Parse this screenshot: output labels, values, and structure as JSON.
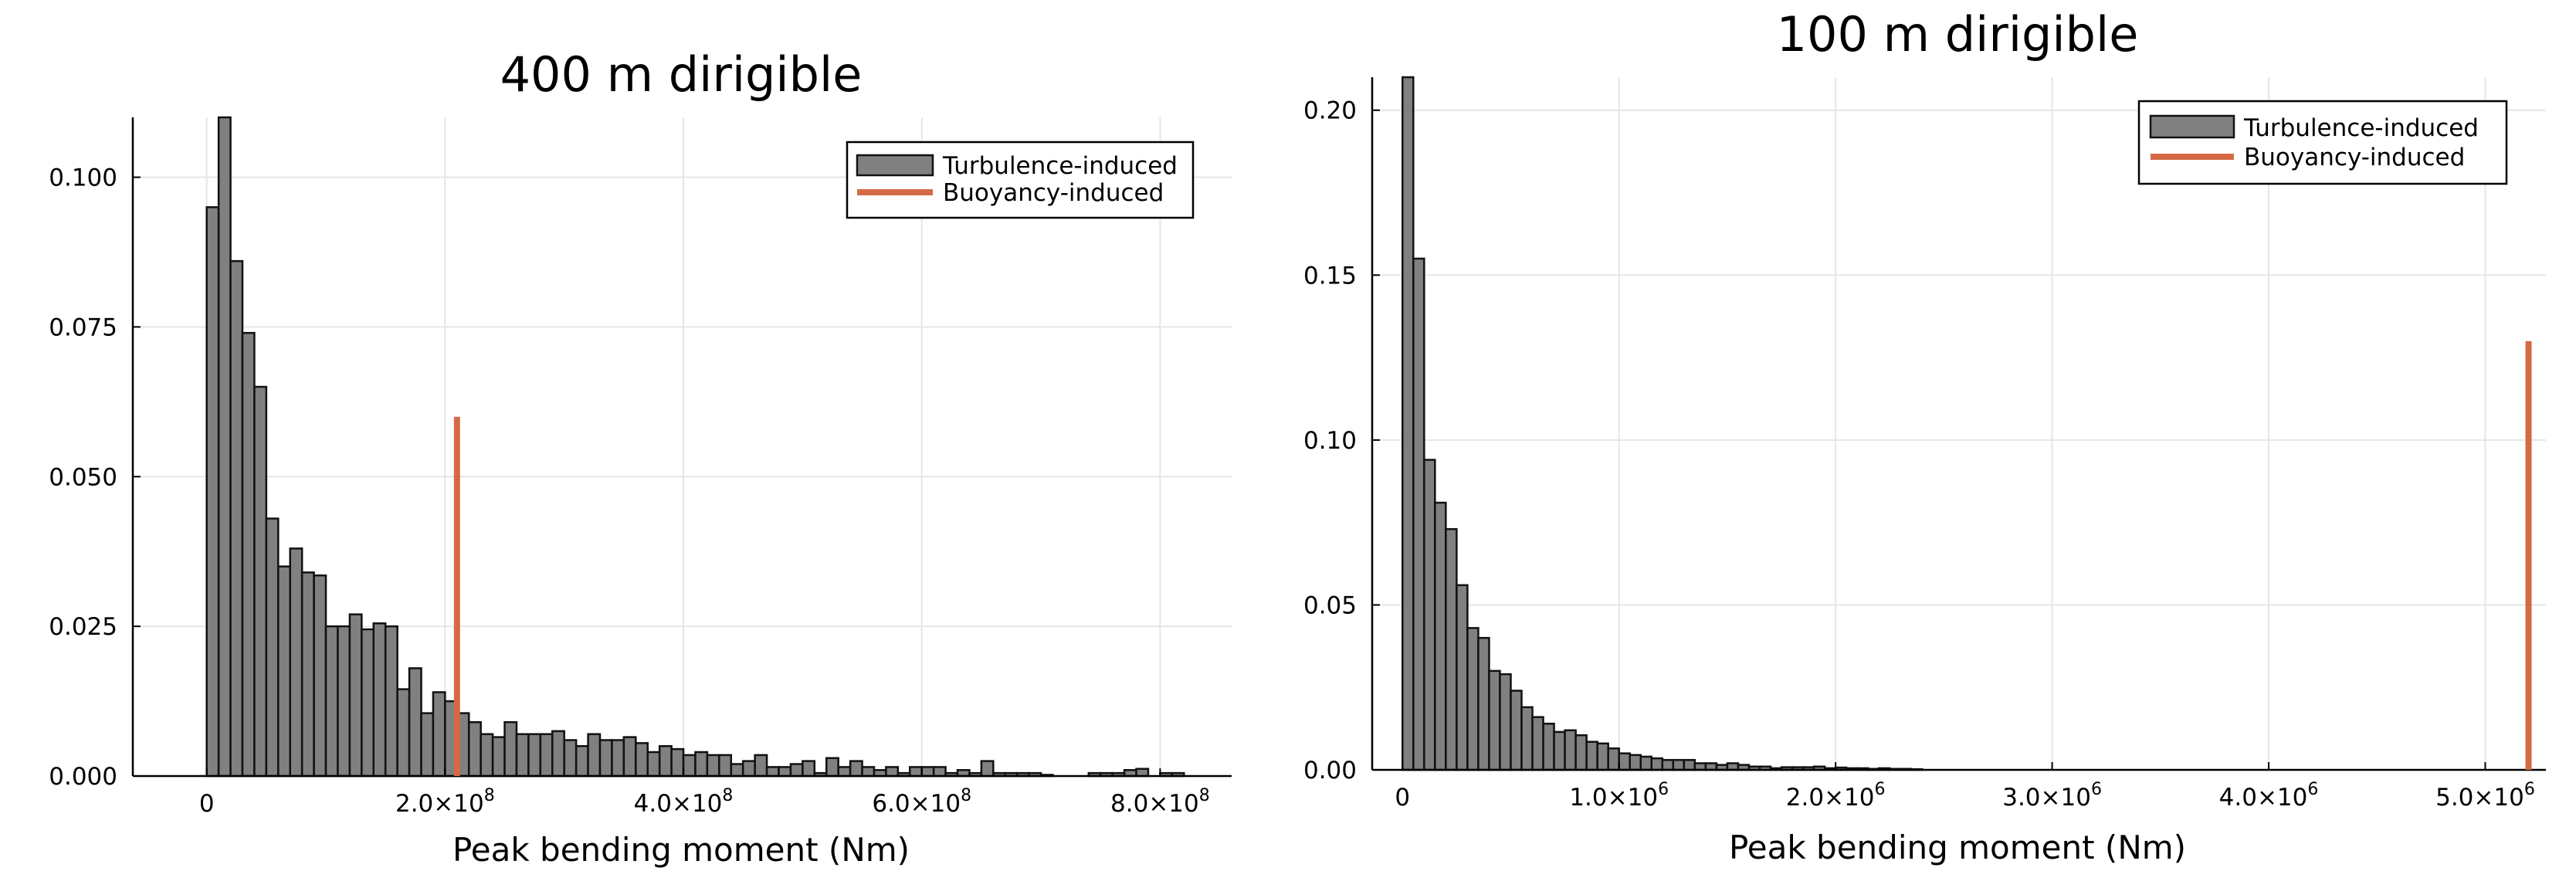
{
  "chart_data": [
    {
      "type": "bar",
      "title": "400 m dirigible",
      "xlabel": "Peak bending moment (Nm)",
      "ylabel": "",
      "xlim": [
        -62000000,
        860000000
      ],
      "ylim": [
        0,
        0.11
      ],
      "grid": true,
      "legend": "top-right",
      "legend_entries": [
        "Turbulence-induced",
        "Buoyancy-induced"
      ],
      "xticks": [
        {
          "value": 0,
          "mant": "0",
          "exp": ""
        },
        {
          "value": 200000000,
          "mant": "2.0×10",
          "exp": "8"
        },
        {
          "value": 400000000,
          "mant": "4.0×10",
          "exp": "8"
        },
        {
          "value": 600000000,
          "mant": "6.0×10",
          "exp": "8"
        },
        {
          "value": 800000000,
          "mant": "8.0×10",
          "exp": "8"
        }
      ],
      "yticks": [
        {
          "value": 0.0,
          "label": "0.000"
        },
        {
          "value": 0.025,
          "label": "0.025"
        },
        {
          "value": 0.05,
          "label": "0.050"
        },
        {
          "value": 0.075,
          "label": "0.075"
        },
        {
          "value": 0.1,
          "label": "0.100"
        }
      ],
      "bin_start": 0,
      "bin_width": 10000000,
      "values": [
        0.095,
        0.11,
        0.086,
        0.074,
        0.065,
        0.043,
        0.035,
        0.038,
        0.034,
        0.0335,
        0.025,
        0.025,
        0.027,
        0.0245,
        0.0255,
        0.025,
        0.0145,
        0.018,
        0.0105,
        0.014,
        0.0125,
        0.0105,
        0.009,
        0.007,
        0.0065,
        0.009,
        0.007,
        0.007,
        0.007,
        0.0075,
        0.006,
        0.005,
        0.007,
        0.006,
        0.006,
        0.0065,
        0.0055,
        0.004,
        0.005,
        0.0045,
        0.0035,
        0.004,
        0.0035,
        0.0035,
        0.002,
        0.0025,
        0.0035,
        0.0015,
        0.0015,
        0.002,
        0.0025,
        0.0005,
        0.003,
        0.0015,
        0.0025,
        0.0015,
        0.001,
        0.0015,
        0.0005,
        0.0015,
        0.0015,
        0.0015,
        0.0005,
        0.001,
        0.0005,
        0.0025,
        0.0005,
        0.0005,
        0.0005,
        0.0005,
        0.0002,
        0.0,
        0.0,
        0.0,
        0.0005,
        0.0005,
        0.0005,
        0.001,
        0.0012,
        0.0,
        0.0005,
        0.0005
      ],
      "buoyancy_line": {
        "x": 210000000,
        "y": 0.06
      }
    },
    {
      "type": "bar",
      "title": "100 m dirigible",
      "xlabel": "Peak bending moment (Nm)",
      "ylabel": "",
      "xlim": [
        -140000,
        5280000
      ],
      "ylim": [
        0,
        0.21
      ],
      "grid": true,
      "legend": "top-right",
      "legend_entries": [
        "Turbulence-induced",
        "Buoyancy-induced"
      ],
      "xticks": [
        {
          "value": 0,
          "mant": "0",
          "exp": ""
        },
        {
          "value": 1000000,
          "mant": "1.0×10",
          "exp": "6"
        },
        {
          "value": 2000000,
          "mant": "2.0×10",
          "exp": "6"
        },
        {
          "value": 3000000,
          "mant": "3.0×10",
          "exp": "6"
        },
        {
          "value": 4000000,
          "mant": "4.0×10",
          "exp": "6"
        },
        {
          "value": 5000000,
          "mant": "5.0×10",
          "exp": "6"
        }
      ],
      "yticks": [
        {
          "value": 0.0,
          "label": "0.00"
        },
        {
          "value": 0.05,
          "label": "0.05"
        },
        {
          "value": 0.1,
          "label": "0.10"
        },
        {
          "value": 0.15,
          "label": "0.15"
        },
        {
          "value": 0.2,
          "label": "0.20"
        }
      ],
      "bin_start": 0,
      "bin_width": 50000,
      "values": [
        0.21,
        0.155,
        0.094,
        0.081,
        0.073,
        0.056,
        0.043,
        0.04,
        0.03,
        0.029,
        0.024,
        0.019,
        0.016,
        0.014,
        0.0115,
        0.012,
        0.0105,
        0.0085,
        0.008,
        0.0065,
        0.005,
        0.0045,
        0.004,
        0.0035,
        0.003,
        0.003,
        0.003,
        0.002,
        0.002,
        0.0015,
        0.002,
        0.0015,
        0.001,
        0.001,
        0.0005,
        0.0008,
        0.0008,
        0.0008,
        0.001,
        0.0005,
        0.0007,
        0.0005,
        0.0005,
        0.0003,
        0.0005,
        0.0003,
        0.0003,
        0.0002
      ],
      "buoyancy_line": {
        "x": 5200000,
        "y": 0.13
      }
    }
  ]
}
